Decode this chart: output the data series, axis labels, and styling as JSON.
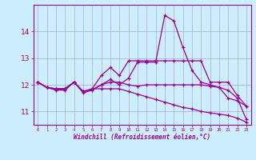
{
  "xlabel": "Windchill (Refroidissement éolien,°C)",
  "bg_color": "#cceeff",
  "line_color": "#990099",
  "grid_color": "#aaaacc",
  "x_hours": [
    0,
    1,
    2,
    3,
    4,
    5,
    6,
    7,
    8,
    9,
    10,
    11,
    12,
    13,
    14,
    15,
    16,
    17,
    18,
    19,
    20,
    21,
    22,
    23
  ],
  "series": [
    [
      12.1,
      11.9,
      11.85,
      11.85,
      12.1,
      11.75,
      11.85,
      12.35,
      12.65,
      12.35,
      12.9,
      12.9,
      12.9,
      12.9,
      12.9,
      12.9,
      12.9,
      12.9,
      12.9,
      12.1,
      12.1,
      12.1,
      11.6,
      11.2
    ],
    [
      12.1,
      11.9,
      11.85,
      11.85,
      12.1,
      11.75,
      11.82,
      12.0,
      12.1,
      12.1,
      12.0,
      11.95,
      12.0,
      12.0,
      12.0,
      12.0,
      12.0,
      12.0,
      12.0,
      11.95,
      11.9,
      11.5,
      11.4,
      11.2
    ],
    [
      12.1,
      11.9,
      11.8,
      11.8,
      12.1,
      11.7,
      11.8,
      12.0,
      12.2,
      12.0,
      12.25,
      12.85,
      12.85,
      12.85,
      14.6,
      14.4,
      13.4,
      12.55,
      12.1,
      12.0,
      11.9,
      11.8,
      11.5,
      10.7
    ],
    [
      12.1,
      11.9,
      11.85,
      11.85,
      12.1,
      11.75,
      11.85,
      11.85,
      11.85,
      11.85,
      11.75,
      11.65,
      11.55,
      11.45,
      11.35,
      11.25,
      11.15,
      11.1,
      11.0,
      10.95,
      10.9,
      10.85,
      10.75,
      10.6
    ]
  ],
  "ylim": [
    10.5,
    15.0
  ],
  "yticks": [
    11,
    12,
    13,
    14
  ],
  "xtick_labels": [
    "0",
    "1",
    "2",
    "3",
    "4",
    "5",
    "6",
    "7",
    "8",
    "9",
    "10",
    "11",
    "12",
    "13",
    "14",
    "15",
    "16",
    "17",
    "18",
    "19",
    "20",
    "21",
    "22",
    "23"
  ]
}
